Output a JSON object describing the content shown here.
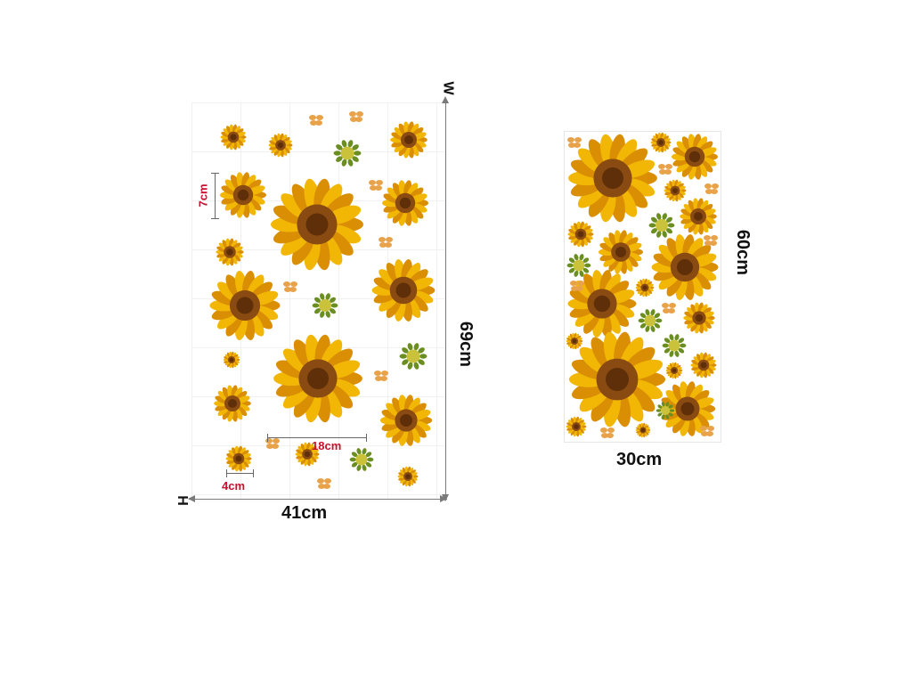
{
  "left_panel": {
    "height_label": "69cm",
    "width_label": "41cm",
    "axis_w_letter": "W",
    "axis_h_letter": "H",
    "small_flower_label": "7cm",
    "large_flower_label": "18cm",
    "tiny_flower_label": "4cm"
  },
  "right_panel": {
    "height_label": "60cm",
    "width_label": "30cm"
  },
  "colors": {
    "petal": "#f2b705",
    "petal_dark": "#d98e04",
    "center": "#8a4b12",
    "center_inner": "#5e2f08",
    "leaf": "#6b8e23",
    "red_label": "#c8102e"
  }
}
